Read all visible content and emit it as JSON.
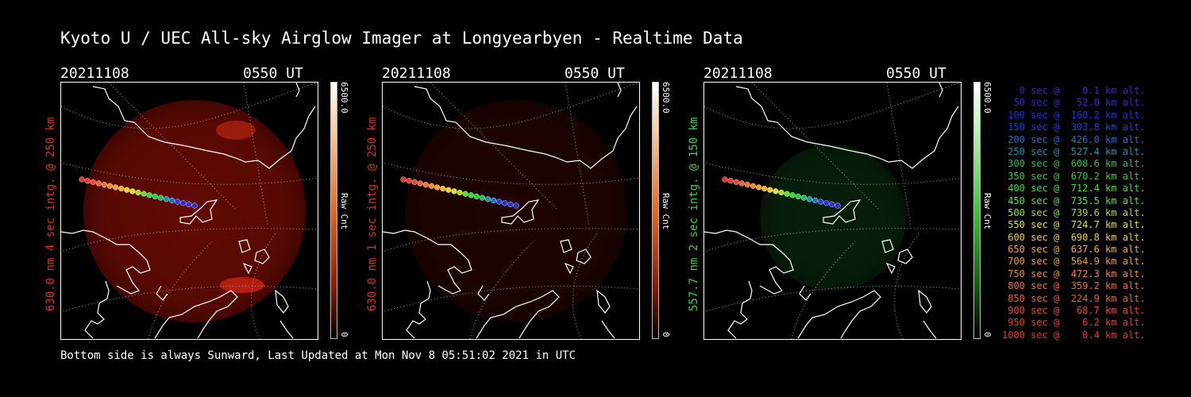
{
  "title": "Kyoto U / UEC All-sky Airglow Imager at Longyearbyen - Realtime Data",
  "footer": "Bottom side is always Sunward, Last Updated at Mon Nov  8 05:51:02 2021 in UTC",
  "panels": [
    {
      "date": "20211108",
      "time": "0550 UT",
      "ylabel": "630.0 nm 4 sec intg. @ 250 km",
      "ylabel_color": "#e03020",
      "cbar_max": "6500.0",
      "cbar_unit": "Raw Cnt",
      "cbar_min": "0",
      "glow": "red",
      "glow_level": 0.65
    },
    {
      "date": "20211108",
      "time": "0550 UT",
      "ylabel": "630.0 nm 1 sec intg. @ 250 km",
      "ylabel_color": "#e03020",
      "cbar_max": "6500.0",
      "cbar_unit": "Raw Cnt",
      "cbar_min": "0",
      "glow": "red",
      "glow_level": 0.2
    },
    {
      "date": "20211108",
      "time": "0550 UT",
      "ylabel": "557.7 nm 2 sec intg. @ 150 km",
      "ylabel_color": "#40d040",
      "cbar_max": "6500.0",
      "cbar_unit": "Raw Cnt",
      "cbar_min": "0",
      "glow": "green",
      "glow_level": 0.35
    }
  ],
  "legend": [
    {
      "text": "   0 sec @    0.1 km alt.",
      "color": "#3030c0"
    },
    {
      "text": "  50 sec @   52.0 km alt.",
      "color": "#3030d0"
    },
    {
      "text": " 100 sec @  160.2 km alt.",
      "color": "#2030e0"
    },
    {
      "text": " 150 sec @  303.8 km alt.",
      "color": "#2040e0"
    },
    {
      "text": " 200 sec @  426.0 km alt.",
      "color": "#2070d0"
    },
    {
      "text": " 250 sec @  527.4 km alt.",
      "color": "#2090b0"
    },
    {
      "text": " 300 sec @  608.6 km alt.",
      "color": "#20c060"
    },
    {
      "text": " 350 sec @  670.2 km alt.",
      "color": "#20d040"
    },
    {
      "text": " 400 sec @  712.4 km alt.",
      "color": "#30e030"
    },
    {
      "text": " 450 sec @  735.5 km alt.",
      "color": "#60e030"
    },
    {
      "text": " 500 sec @  739.6 km alt.",
      "color": "#a0e030"
    },
    {
      "text": " 550 sec @  724.7 km alt.",
      "color": "#e0e030"
    },
    {
      "text": " 600 sec @  690.8 km alt.",
      "color": "#f0d030"
    },
    {
      "text": " 650 sec @  637.6 km alt.",
      "color": "#f0b030"
    },
    {
      "text": " 700 sec @  564.9 km alt.",
      "color": "#f0a030"
    },
    {
      "text": " 750 sec @  472.3 km alt.",
      "color": "#f08830"
    },
    {
      "text": " 800 sec @  359.2 km alt.",
      "color": "#f07030"
    },
    {
      "text": " 850 sec @  224.9 km alt.",
      "color": "#f06030"
    },
    {
      "text": " 900 sec @   68.7 km alt.",
      "color": "#f04830"
    },
    {
      "text": " 950 sec @    6.2 km alt.",
      "color": "#f03830"
    },
    {
      "text": "1000 sec @    0.4 km alt.",
      "color": "#f03030"
    }
  ]
}
